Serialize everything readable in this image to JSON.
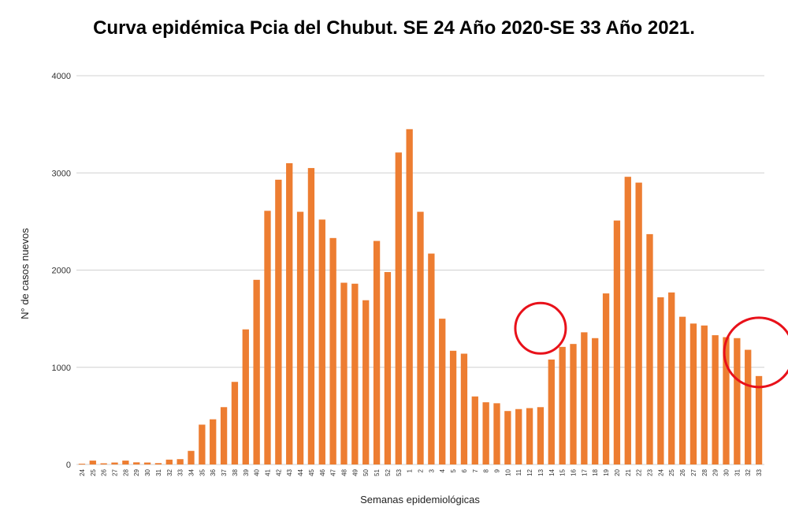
{
  "chart_data": {
    "type": "bar",
    "title": "Curva epidémica Pcia del Chubut. SE 24 Año 2020-SE 33 Año 2021.",
    "xlabel": "Semanas epidemiológicas",
    "ylabel": "N° de casos nuevos",
    "ylim": [
      0,
      4000
    ],
    "yticks": [
      "0",
      "1000",
      "2000",
      "3000",
      "4000"
    ],
    "grid": true,
    "bar_color": "#ED7D31",
    "annotation_color": "#E8111A",
    "categories": [
      "24",
      "25",
      "26",
      "27",
      "28",
      "29",
      "30",
      "31",
      "32",
      "33",
      "34",
      "35",
      "36",
      "37",
      "38",
      "39",
      "40",
      "41",
      "42",
      "43",
      "44",
      "45",
      "46",
      "47",
      "48",
      "49",
      "50",
      "51",
      "52",
      "53",
      "1",
      "2",
      "3",
      "4",
      "5",
      "6",
      "7",
      "8",
      "9",
      "10",
      "11",
      "12",
      "13",
      "14",
      "15",
      "16",
      "17",
      "18",
      "19",
      "20",
      "21",
      "22",
      "23",
      "24",
      "25",
      "26",
      "27",
      "28",
      "29",
      "30",
      "31",
      "32",
      "33"
    ],
    "values": [
      8,
      40,
      12,
      20,
      40,
      22,
      20,
      14,
      50,
      55,
      140,
      410,
      465,
      590,
      850,
      1390,
      1900,
      2610,
      2930,
      3100,
      2600,
      3050,
      2520,
      2330,
      1870,
      1860,
      1690,
      2300,
      1980,
      3210,
      3450,
      2600,
      2170,
      1500,
      1170,
      1140,
      700,
      640,
      630,
      550,
      570,
      580,
      590,
      1080,
      1210,
      1240,
      1360,
      1300,
      1760,
      2510,
      2960,
      2900,
      2370,
      1720,
      1770,
      1520,
      1450,
      1430,
      1330,
      1310,
      1300,
      1180,
      910
    ],
    "annotations": [
      {
        "type": "circle",
        "near_category_index": 42
      },
      {
        "type": "circle",
        "near_category_index": 62
      }
    ]
  }
}
